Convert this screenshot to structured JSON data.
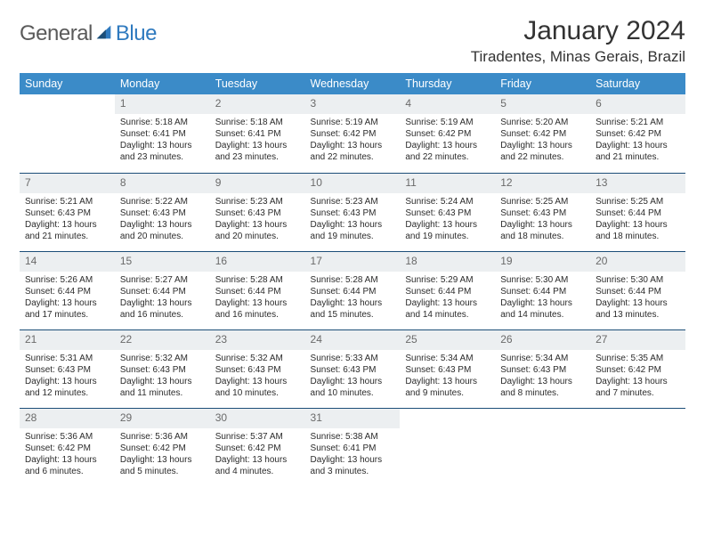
{
  "colors": {
    "header_bg": "#3b8bc8",
    "header_text": "#ffffff",
    "daynum_bg": "#eceff1",
    "daynum_text": "#6a6a6a",
    "rule": "#1c4e78",
    "body_text": "#2b2b2b",
    "logo_gray": "#5a5a5a",
    "logo_blue": "#2f7abf"
  },
  "typography": {
    "title_fontsize": 30,
    "location_fontsize": 17,
    "weekday_fontsize": 12.5,
    "daynum_fontsize": 12,
    "cell_fontsize": 10
  },
  "logo": {
    "text_a": "General",
    "text_b": "Blue"
  },
  "title": "January 2024",
  "location": "Tiradentes, Minas Gerais, Brazil",
  "weekdays": [
    "Sunday",
    "Monday",
    "Tuesday",
    "Wednesday",
    "Thursday",
    "Friday",
    "Saturday"
  ],
  "calendar": {
    "start_weekday": 1,
    "days": [
      {
        "n": "1",
        "sunrise": "Sunrise: 5:18 AM",
        "sunset": "Sunset: 6:41 PM",
        "daylight": "Daylight: 13 hours and 23 minutes."
      },
      {
        "n": "2",
        "sunrise": "Sunrise: 5:18 AM",
        "sunset": "Sunset: 6:41 PM",
        "daylight": "Daylight: 13 hours and 23 minutes."
      },
      {
        "n": "3",
        "sunrise": "Sunrise: 5:19 AM",
        "sunset": "Sunset: 6:42 PM",
        "daylight": "Daylight: 13 hours and 22 minutes."
      },
      {
        "n": "4",
        "sunrise": "Sunrise: 5:19 AM",
        "sunset": "Sunset: 6:42 PM",
        "daylight": "Daylight: 13 hours and 22 minutes."
      },
      {
        "n": "5",
        "sunrise": "Sunrise: 5:20 AM",
        "sunset": "Sunset: 6:42 PM",
        "daylight": "Daylight: 13 hours and 22 minutes."
      },
      {
        "n": "6",
        "sunrise": "Sunrise: 5:21 AM",
        "sunset": "Sunset: 6:42 PM",
        "daylight": "Daylight: 13 hours and 21 minutes."
      },
      {
        "n": "7",
        "sunrise": "Sunrise: 5:21 AM",
        "sunset": "Sunset: 6:43 PM",
        "daylight": "Daylight: 13 hours and 21 minutes."
      },
      {
        "n": "8",
        "sunrise": "Sunrise: 5:22 AM",
        "sunset": "Sunset: 6:43 PM",
        "daylight": "Daylight: 13 hours and 20 minutes."
      },
      {
        "n": "9",
        "sunrise": "Sunrise: 5:23 AM",
        "sunset": "Sunset: 6:43 PM",
        "daylight": "Daylight: 13 hours and 20 minutes."
      },
      {
        "n": "10",
        "sunrise": "Sunrise: 5:23 AM",
        "sunset": "Sunset: 6:43 PM",
        "daylight": "Daylight: 13 hours and 19 minutes."
      },
      {
        "n": "11",
        "sunrise": "Sunrise: 5:24 AM",
        "sunset": "Sunset: 6:43 PM",
        "daylight": "Daylight: 13 hours and 19 minutes."
      },
      {
        "n": "12",
        "sunrise": "Sunrise: 5:25 AM",
        "sunset": "Sunset: 6:43 PM",
        "daylight": "Daylight: 13 hours and 18 minutes."
      },
      {
        "n": "13",
        "sunrise": "Sunrise: 5:25 AM",
        "sunset": "Sunset: 6:44 PM",
        "daylight": "Daylight: 13 hours and 18 minutes."
      },
      {
        "n": "14",
        "sunrise": "Sunrise: 5:26 AM",
        "sunset": "Sunset: 6:44 PM",
        "daylight": "Daylight: 13 hours and 17 minutes."
      },
      {
        "n": "15",
        "sunrise": "Sunrise: 5:27 AM",
        "sunset": "Sunset: 6:44 PM",
        "daylight": "Daylight: 13 hours and 16 minutes."
      },
      {
        "n": "16",
        "sunrise": "Sunrise: 5:28 AM",
        "sunset": "Sunset: 6:44 PM",
        "daylight": "Daylight: 13 hours and 16 minutes."
      },
      {
        "n": "17",
        "sunrise": "Sunrise: 5:28 AM",
        "sunset": "Sunset: 6:44 PM",
        "daylight": "Daylight: 13 hours and 15 minutes."
      },
      {
        "n": "18",
        "sunrise": "Sunrise: 5:29 AM",
        "sunset": "Sunset: 6:44 PM",
        "daylight": "Daylight: 13 hours and 14 minutes."
      },
      {
        "n": "19",
        "sunrise": "Sunrise: 5:30 AM",
        "sunset": "Sunset: 6:44 PM",
        "daylight": "Daylight: 13 hours and 14 minutes."
      },
      {
        "n": "20",
        "sunrise": "Sunrise: 5:30 AM",
        "sunset": "Sunset: 6:44 PM",
        "daylight": "Daylight: 13 hours and 13 minutes."
      },
      {
        "n": "21",
        "sunrise": "Sunrise: 5:31 AM",
        "sunset": "Sunset: 6:43 PM",
        "daylight": "Daylight: 13 hours and 12 minutes."
      },
      {
        "n": "22",
        "sunrise": "Sunrise: 5:32 AM",
        "sunset": "Sunset: 6:43 PM",
        "daylight": "Daylight: 13 hours and 11 minutes."
      },
      {
        "n": "23",
        "sunrise": "Sunrise: 5:32 AM",
        "sunset": "Sunset: 6:43 PM",
        "daylight": "Daylight: 13 hours and 10 minutes."
      },
      {
        "n": "24",
        "sunrise": "Sunrise: 5:33 AM",
        "sunset": "Sunset: 6:43 PM",
        "daylight": "Daylight: 13 hours and 10 minutes."
      },
      {
        "n": "25",
        "sunrise": "Sunrise: 5:34 AM",
        "sunset": "Sunset: 6:43 PM",
        "daylight": "Daylight: 13 hours and 9 minutes."
      },
      {
        "n": "26",
        "sunrise": "Sunrise: 5:34 AM",
        "sunset": "Sunset: 6:43 PM",
        "daylight": "Daylight: 13 hours and 8 minutes."
      },
      {
        "n": "27",
        "sunrise": "Sunrise: 5:35 AM",
        "sunset": "Sunset: 6:42 PM",
        "daylight": "Daylight: 13 hours and 7 minutes."
      },
      {
        "n": "28",
        "sunrise": "Sunrise: 5:36 AM",
        "sunset": "Sunset: 6:42 PM",
        "daylight": "Daylight: 13 hours and 6 minutes."
      },
      {
        "n": "29",
        "sunrise": "Sunrise: 5:36 AM",
        "sunset": "Sunset: 6:42 PM",
        "daylight": "Daylight: 13 hours and 5 minutes."
      },
      {
        "n": "30",
        "sunrise": "Sunrise: 5:37 AM",
        "sunset": "Sunset: 6:42 PM",
        "daylight": "Daylight: 13 hours and 4 minutes."
      },
      {
        "n": "31",
        "sunrise": "Sunrise: 5:38 AM",
        "sunset": "Sunset: 6:41 PM",
        "daylight": "Daylight: 13 hours and 3 minutes."
      }
    ]
  }
}
